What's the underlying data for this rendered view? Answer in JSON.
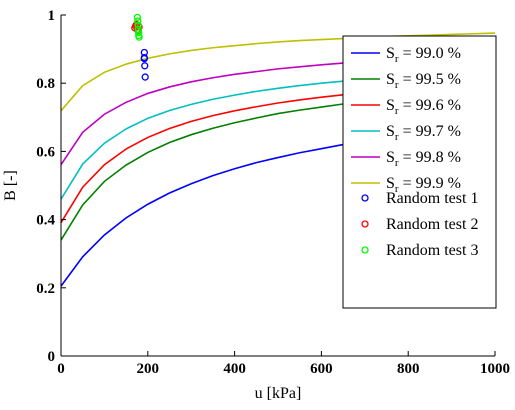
{
  "chart_data": {
    "type": "line",
    "xlabel": "u [kPa]",
    "ylabel": "B [-]",
    "xlim": [
      0,
      1000
    ],
    "ylim": [
      0,
      1
    ],
    "x_ticks": [
      "0",
      "200",
      "400",
      "600",
      "800",
      "1000"
    ],
    "y_ticks": [
      "0",
      "0.2",
      "0.4",
      "0.6",
      "0.8",
      "1"
    ],
    "grid": false,
    "legend_position": "right",
    "series": [
      {
        "name_prefix": "S",
        "name_sub": "r",
        "name_suffix": " = 99.0 %",
        "color": "#0000ff",
        "x": [
          0,
          50,
          100,
          150,
          200,
          250,
          300,
          350,
          400,
          450,
          500,
          550,
          600,
          650,
          700,
          750,
          800,
          850,
          900,
          950,
          1000
        ],
        "y": [
          0.205,
          0.291,
          0.355,
          0.405,
          0.445,
          0.478,
          0.505,
          0.529,
          0.549,
          0.567,
          0.582,
          0.596,
          0.608,
          0.62,
          0.63,
          0.639,
          0.647,
          0.655,
          0.662,
          0.669,
          0.675
        ]
      },
      {
        "name_prefix": "S",
        "name_sub": "r",
        "name_suffix": " = 99.5 %",
        "color": "#008000",
        "x": [
          0,
          50,
          100,
          150,
          200,
          250,
          300,
          350,
          400,
          450,
          500,
          550,
          600,
          650,
          700,
          750,
          800,
          850,
          900,
          950,
          1000
        ],
        "y": [
          0.34,
          0.443,
          0.512,
          0.56,
          0.597,
          0.626,
          0.649,
          0.668,
          0.684,
          0.698,
          0.711,
          0.721,
          0.73,
          0.739,
          0.746,
          0.753,
          0.759,
          0.765,
          0.77,
          0.775,
          0.779
        ]
      },
      {
        "name_prefix": "S",
        "name_sub": "r",
        "name_suffix": " = 99.6 %",
        "color": "#ff0000",
        "x": [
          0,
          50,
          100,
          150,
          200,
          250,
          300,
          350,
          400,
          450,
          500,
          550,
          600,
          650,
          700,
          750,
          800,
          850,
          900,
          950,
          1000
        ],
        "y": [
          0.391,
          0.495,
          0.561,
          0.607,
          0.641,
          0.667,
          0.688,
          0.705,
          0.719,
          0.731,
          0.742,
          0.751,
          0.759,
          0.766,
          0.772,
          0.778,
          0.783,
          0.788,
          0.793,
          0.797,
          0.8
        ]
      },
      {
        "name_prefix": "S",
        "name_sub": "r",
        "name_suffix": " = 99.7 %",
        "color": "#00bfbf",
        "x": [
          0,
          50,
          100,
          150,
          200,
          250,
          300,
          350,
          400,
          450,
          500,
          550,
          600,
          650,
          700,
          750,
          800,
          850,
          900,
          950,
          1000
        ],
        "y": [
          0.46,
          0.563,
          0.624,
          0.666,
          0.697,
          0.72,
          0.738,
          0.753,
          0.765,
          0.776,
          0.785,
          0.793,
          0.8,
          0.806,
          0.811,
          0.816,
          0.821,
          0.825,
          0.828,
          0.832,
          0.835
        ]
      },
      {
        "name_prefix": "S",
        "name_sub": "r",
        "name_suffix": " = 99.8 %",
        "color": "#bf00bf",
        "x": [
          0,
          50,
          100,
          150,
          200,
          250,
          300,
          350,
          400,
          450,
          500,
          550,
          600,
          650,
          700,
          750,
          800,
          850,
          900,
          950,
          1000
        ],
        "y": [
          0.561,
          0.656,
          0.709,
          0.744,
          0.77,
          0.789,
          0.804,
          0.816,
          0.826,
          0.834,
          0.842,
          0.848,
          0.854,
          0.859,
          0.863,
          0.867,
          0.87,
          0.874,
          0.876,
          0.879,
          0.882
        ]
      },
      {
        "name_prefix": "S",
        "name_sub": "r",
        "name_suffix": " = 99.9 %",
        "color": "#bfbf00",
        "x": [
          0,
          50,
          100,
          150,
          200,
          250,
          300,
          350,
          400,
          450,
          500,
          550,
          600,
          650,
          700,
          750,
          800,
          850,
          900,
          950,
          1000
        ],
        "y": [
          0.719,
          0.793,
          0.832,
          0.856,
          0.873,
          0.886,
          0.896,
          0.904,
          0.91,
          0.916,
          0.921,
          0.925,
          0.928,
          0.931,
          0.934,
          0.937,
          0.939,
          0.941,
          0.943,
          0.945,
          0.947
        ]
      }
    ],
    "scatter_series": [
      {
        "name": "Random test 1",
        "color": "#0000ff",
        "x": [
          192,
          192,
          192,
          193,
          194
        ],
        "y": [
          0.89,
          0.875,
          0.872,
          0.851,
          0.818
        ]
      },
      {
        "name": "Random test 2",
        "color": "#ff0000",
        "x": [
          170,
          172,
          174,
          176,
          178,
          180
        ],
        "y": [
          0.962,
          0.968,
          0.972,
          0.958,
          0.955,
          0.965
        ]
      },
      {
        "name": "Random test 3",
        "color": "#00ff00",
        "x": [
          176,
          177,
          178,
          178,
          179,
          179,
          180
        ],
        "y": [
          0.993,
          0.982,
          0.97,
          0.958,
          0.948,
          0.94,
          0.935
        ]
      }
    ]
  }
}
